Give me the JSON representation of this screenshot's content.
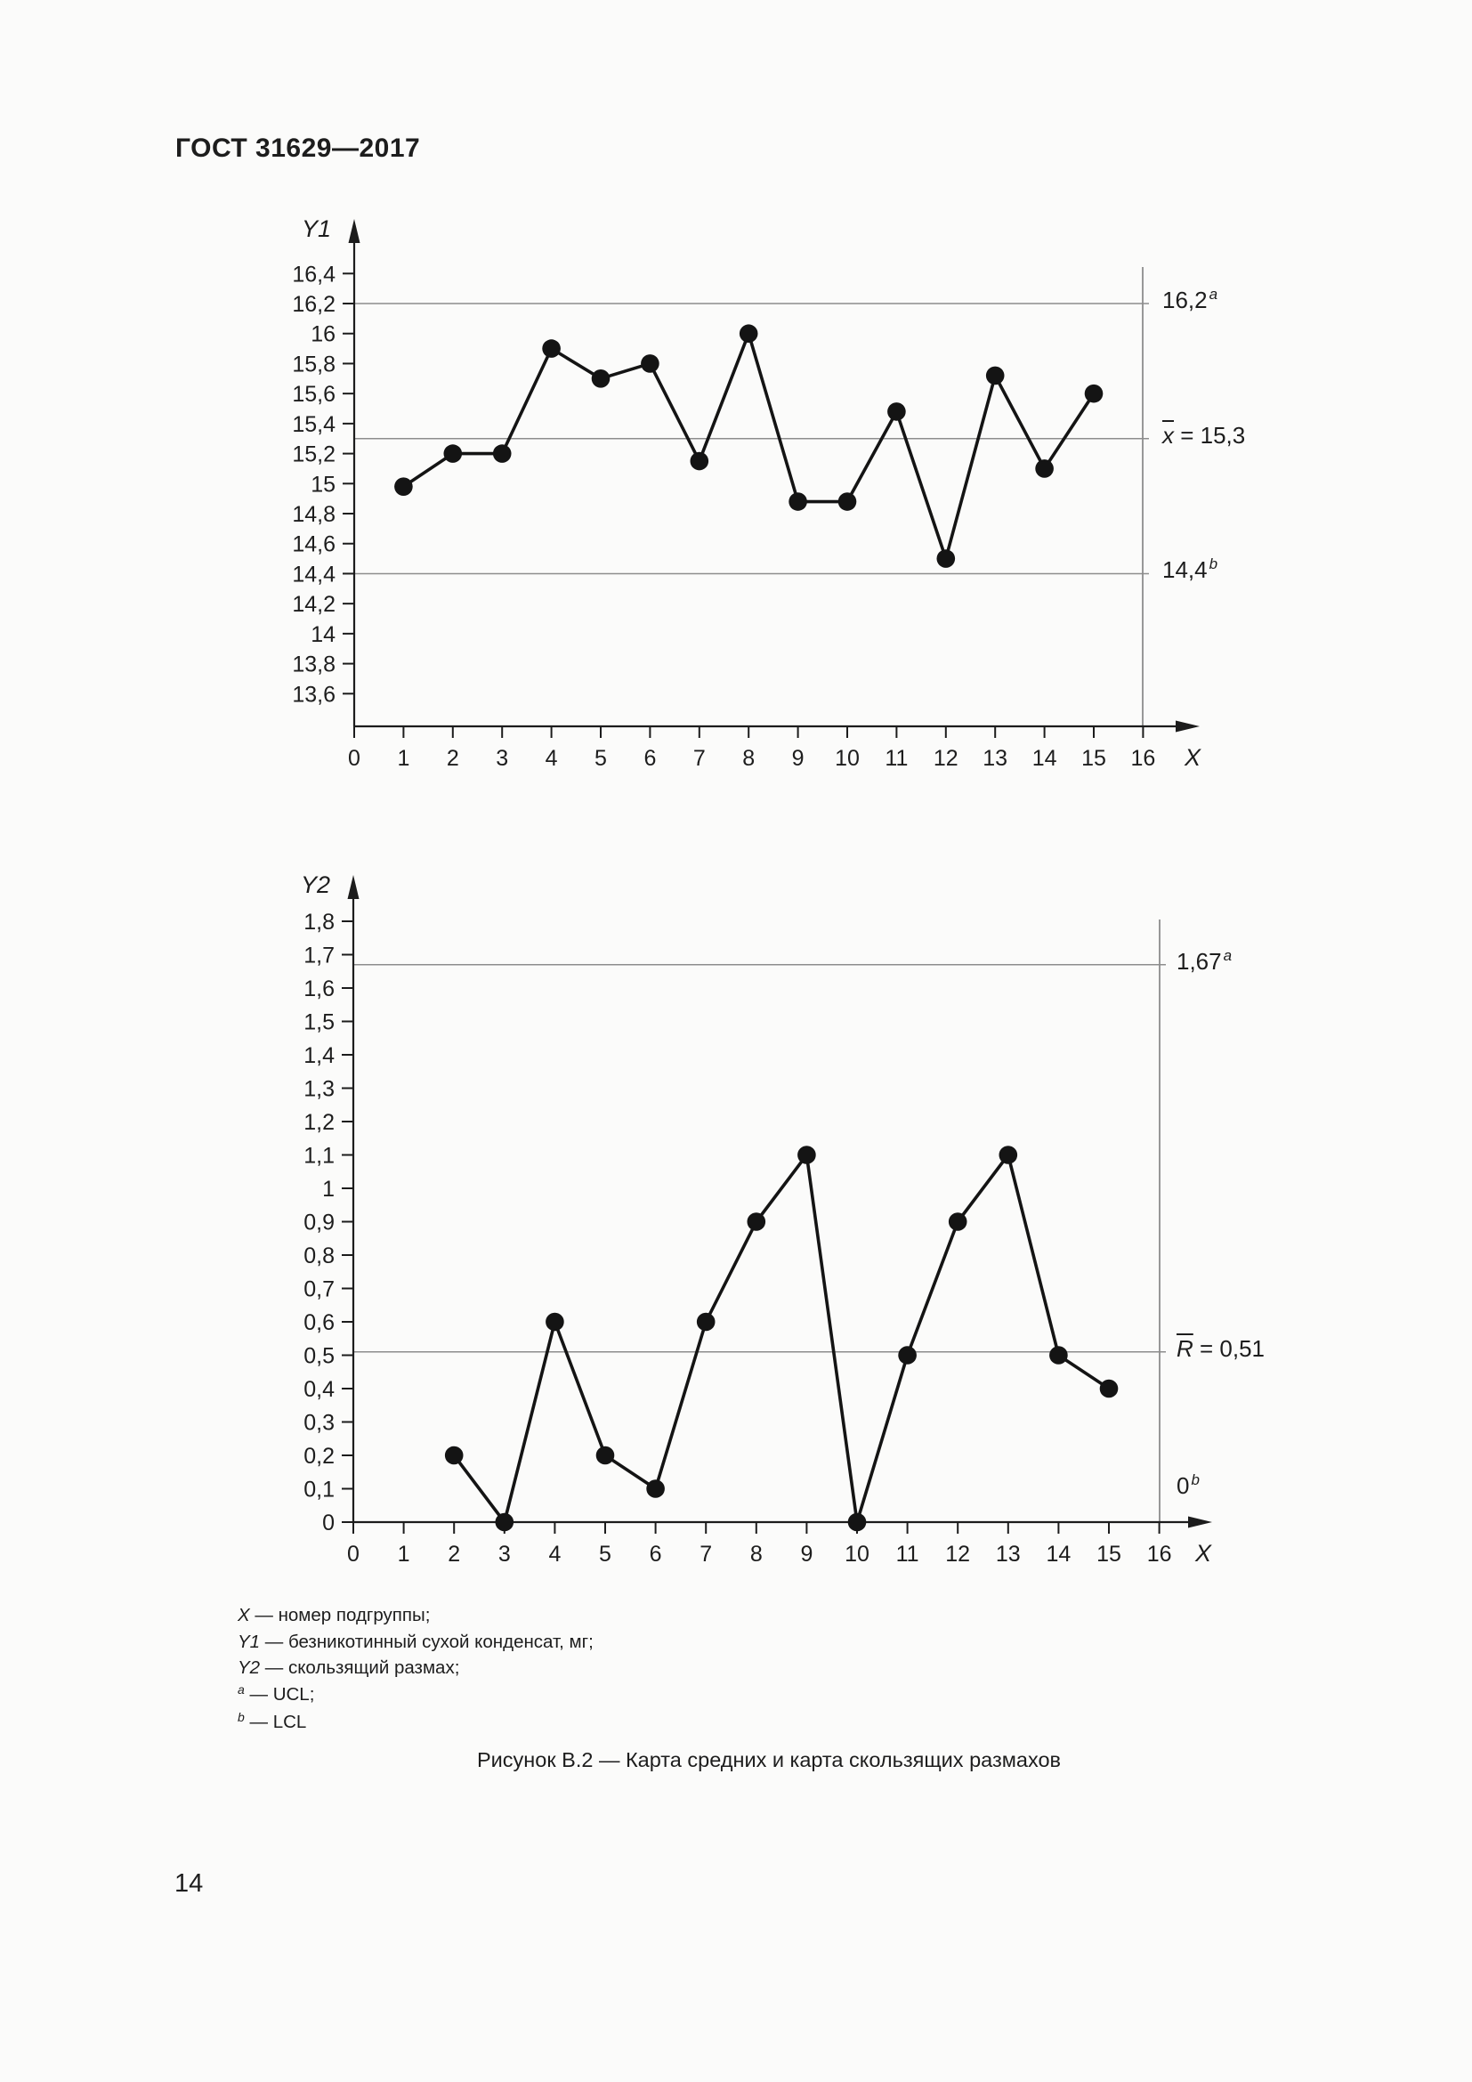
{
  "page": {
    "header": "ГОСТ 31629—2017",
    "caption": "Рисунок В.2 — Карта средних и карта скользящих размахов",
    "page_number": "14"
  },
  "legend": {
    "dash": "—",
    "items": [
      {
        "symbol": "X",
        "superscript": false,
        "text": "номер подгруппы;"
      },
      {
        "symbol": "Y1",
        "superscript": false,
        "text": "безникотинный сухой конденсат, мг;"
      },
      {
        "symbol": "Y2",
        "superscript": false,
        "text": "скользящий размах;"
      },
      {
        "symbol": "a",
        "superscript": true,
        "text": "UCL;"
      },
      {
        "symbol": "b",
        "superscript": true,
        "text": "LCL"
      }
    ]
  },
  "chart_data": [
    {
      "type": "line",
      "name": "means-chart",
      "y_axis_label": "Y1",
      "x_axis_label": "X",
      "x": [
        1,
        2,
        3,
        4,
        5,
        6,
        7,
        8,
        9,
        10,
        11,
        12,
        13,
        14,
        15
      ],
      "values": [
        14.98,
        15.2,
        15.2,
        15.9,
        15.7,
        15.8,
        15.15,
        16.0,
        14.88,
        14.88,
        15.48,
        14.5,
        15.72,
        15.1,
        15.6
      ],
      "xlim": [
        0,
        16
      ],
      "ylim": [
        13.4,
        16.78
      ],
      "grid": false,
      "x_tick_labels": [
        "0",
        "1",
        "2",
        "3",
        "4",
        "5",
        "6",
        "7",
        "8",
        "9",
        "10",
        "11",
        "12",
        "13",
        "14",
        "15",
        "16"
      ],
      "y_ticks": [
        {
          "v": 16.4,
          "label": "16,4"
        },
        {
          "v": 16.2,
          "label": "16,2"
        },
        {
          "v": 16.0,
          "label": "16"
        },
        {
          "v": 15.8,
          "label": "15,8"
        },
        {
          "v": 15.6,
          "label": "15,6"
        },
        {
          "v": 15.4,
          "label": "15,4"
        },
        {
          "v": 15.2,
          "label": "15,2"
        },
        {
          "v": 15.0,
          "label": "15"
        },
        {
          "v": 14.8,
          "label": "14,8"
        },
        {
          "v": 14.6,
          "label": "14,6"
        },
        {
          "v": 14.4,
          "label": "14,4"
        },
        {
          "v": 14.2,
          "label": "14,2"
        },
        {
          "v": 14.0,
          "label": "14"
        },
        {
          "v": 13.8,
          "label": "13,8"
        },
        {
          "v": 13.6,
          "label": "13,6"
        }
      ],
      "reference_lines": [
        {
          "value": 16.2,
          "text": "16,2",
          "sup": "a",
          "line": true
        },
        {
          "value": 15.3,
          "overline": "x",
          "text": " = 15,3",
          "line": true
        },
        {
          "value": 14.4,
          "text": "14,4",
          "sup": "b",
          "line": true
        }
      ]
    },
    {
      "type": "line",
      "name": "moving-range-chart",
      "y_axis_label": "Y2",
      "x_axis_label": "X",
      "x": [
        2,
        3,
        4,
        5,
        6,
        7,
        8,
        9,
        10,
        11,
        12,
        13,
        14,
        15
      ],
      "values": [
        0.2,
        0,
        0.6,
        0.2,
        0.1,
        0.6,
        0.9,
        1.1,
        0,
        0.5,
        0.9,
        1.1,
        0.5,
        0.4
      ],
      "xlim": [
        0,
        16
      ],
      "ylim": [
        0,
        1.94
      ],
      "grid": false,
      "x_tick_labels": [
        "0",
        "1",
        "2",
        "3",
        "4",
        "5",
        "6",
        "7",
        "8",
        "9",
        "10",
        "11",
        "12",
        "13",
        "14",
        "15",
        "16"
      ],
      "y_ticks": [
        {
          "v": 1.8,
          "label": "1,8"
        },
        {
          "v": 1.7,
          "label": "1,7"
        },
        {
          "v": 1.6,
          "label": "1,6"
        },
        {
          "v": 1.5,
          "label": "1,5"
        },
        {
          "v": 1.4,
          "label": "1,4"
        },
        {
          "v": 1.3,
          "label": "1,3"
        },
        {
          "v": 1.2,
          "label": "1,2"
        },
        {
          "v": 1.1,
          "label": "1,1"
        },
        {
          "v": 1.0,
          "label": "1"
        },
        {
          "v": 0.9,
          "label": "0,9"
        },
        {
          "v": 0.8,
          "label": "0,8"
        },
        {
          "v": 0.7,
          "label": "0,7"
        },
        {
          "v": 0.6,
          "label": "0,6"
        },
        {
          "v": 0.5,
          "label": "0,5"
        },
        {
          "v": 0.4,
          "label": "0,4"
        },
        {
          "v": 0.3,
          "label": "0,3"
        },
        {
          "v": 0.2,
          "label": "0,2"
        },
        {
          "v": 0.1,
          "label": "0,1"
        },
        {
          "v": 0,
          "label": "0"
        }
      ],
      "reference_lines": [
        {
          "value": 1.67,
          "text": "1,67",
          "sup": "a",
          "line": true
        },
        {
          "value": 0.51,
          "overline": "R",
          "text": " = 0,51",
          "line": true
        },
        {
          "value": 0,
          "label_at": 0.1,
          "text": "0",
          "sup": "b",
          "line": false
        }
      ]
    }
  ]
}
